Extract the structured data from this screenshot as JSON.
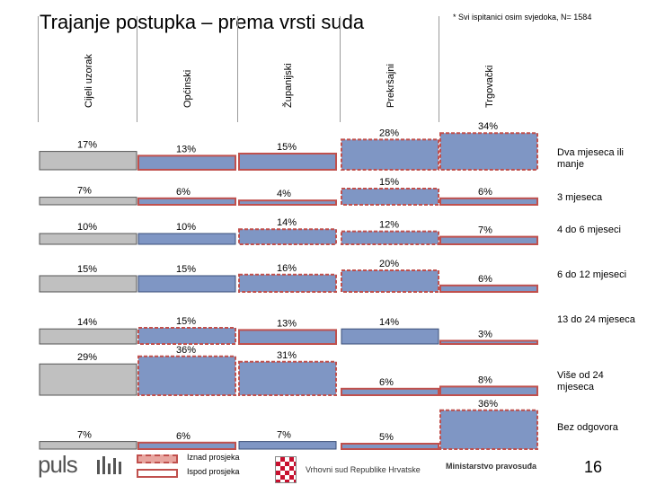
{
  "header": {
    "title": "Trajanje postupka – prema vrsti suda",
    "note": "* Svi ispitanici osim svjedoka, N= 1584"
  },
  "chart_data": {
    "type": "bar",
    "title": "Trajanje postupka – prema vrsti suda",
    "columns": [
      "Cijeli uzorak",
      "Općinski",
      "Županijski",
      "Prekršajni",
      "Trgovački"
    ],
    "categories": [
      "Dva mjeseca ili manje",
      "3 mjeseca",
      "4 do 6 mjeseci",
      "6 do 12 mjeseci",
      "13 do 24 mjeseca",
      "Više od 24 mjeseca",
      "Bez odgovora"
    ],
    "series": [
      {
        "name": "Cijeli uzorak",
        "values": [
          17,
          7,
          10,
          15,
          14,
          29,
          7
        ],
        "labels": [
          "17%",
          "7%",
          "10%",
          "15%",
          "14%",
          "29%",
          "7%"
        ]
      },
      {
        "name": "Općinski",
        "values": [
          13,
          6,
          10,
          15,
          15,
          36,
          6
        ],
        "labels": [
          "13%",
          "6%",
          "10%",
          "15%",
          "15%",
          "36%",
          "6%"
        ]
      },
      {
        "name": "Županijski",
        "values": [
          15,
          4,
          14,
          16,
          13,
          31,
          7
        ],
        "labels": [
          "15%",
          "4%",
          "14%",
          "16%",
          "13%",
          "31%",
          "7%"
        ]
      },
      {
        "name": "Prekršajni",
        "values": [
          28,
          15,
          12,
          20,
          14,
          6,
          5
        ],
        "labels": [
          "28%",
          "15%",
          "12%",
          "20%",
          "14%",
          "6%",
          "5%"
        ]
      },
      {
        "name": "Trgovački",
        "values": [
          34,
          6,
          7,
          6,
          3,
          8,
          36
        ],
        "labels": [
          "34%",
          "6%",
          "7%",
          "6%",
          "3%",
          "8%",
          "36%"
        ]
      }
    ],
    "comparison": [
      [
        null,
        "below",
        "below",
        "above",
        "above"
      ],
      [
        null,
        "below",
        "below",
        "above",
        "below"
      ],
      [
        null,
        "same",
        "above",
        "above",
        "below"
      ],
      [
        null,
        "same",
        "above",
        "above",
        "below"
      ],
      [
        null,
        "above",
        "below",
        "same",
        "below"
      ],
      [
        null,
        "above",
        "above",
        "below",
        "below"
      ],
      [
        null,
        "below",
        "same",
        "below",
        "above"
      ]
    ],
    "legend": [
      "Iznad prosjeka",
      "Ispod prosjeka"
    ],
    "colors": {
      "bar_fill": "#7f96c4",
      "bar_stroke": "#3b4f78",
      "base_fill": "#c0c0c0",
      "above": "#c0504d",
      "below": "#c0504d"
    }
  },
  "footer": {
    "logo_text": "puls",
    "partner1": "Vrhovni sud Republike Hrvatske",
    "partner2": "Ministarstvo pravosuđa",
    "page_number": "16"
  }
}
